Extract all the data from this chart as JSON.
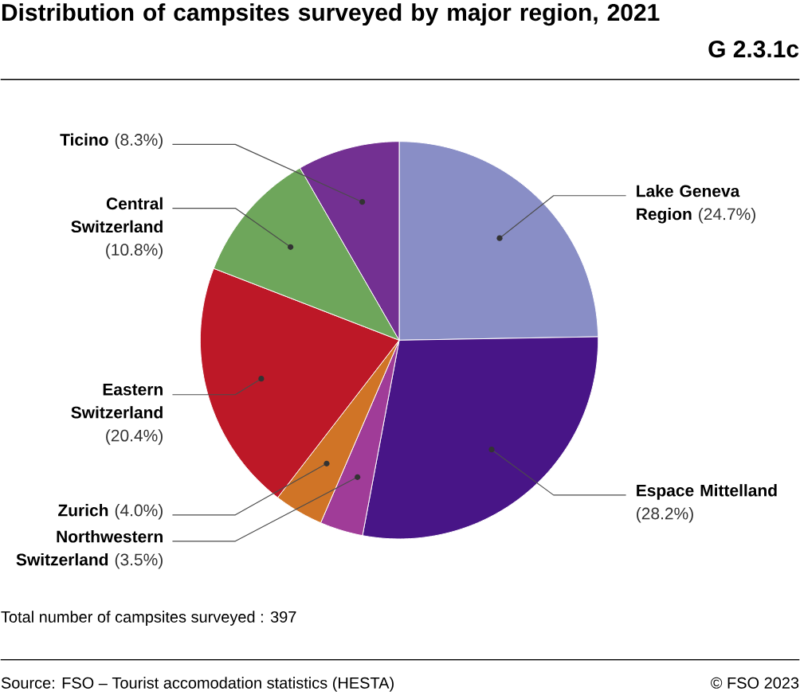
{
  "chart_data": {
    "type": "pie",
    "title": "Distribution of campsites surveyed by major region, 2021",
    "categories": [
      "Lake Geneva Region",
      "Espace Mittelland",
      "Northwestern Switzerland",
      "Zurich",
      "Eastern Switzerland",
      "Central Switzerland",
      "Ticino"
    ],
    "values": [
      24.7,
      28.2,
      3.5,
      4.0,
      20.4,
      10.8,
      8.3
    ],
    "value_labels": [
      "(24.7%)",
      "(28.2%)",
      "(3.5%)",
      "(4.0%)",
      "(20.4%)",
      "(10.8%)",
      "(8.3%)"
    ],
    "colors": [
      "#898ec6",
      "#481587",
      "#a03c98",
      "#d07426",
      "#bd1827",
      "#6ea65b",
      "#733092"
    ],
    "annotations": [
      "G 2.3.1c",
      "Total number of campsites surveyed : 397",
      "Source: FSO – Tourist accomodation statistics (HESTA)",
      "© FSO 2023"
    ]
  }
}
